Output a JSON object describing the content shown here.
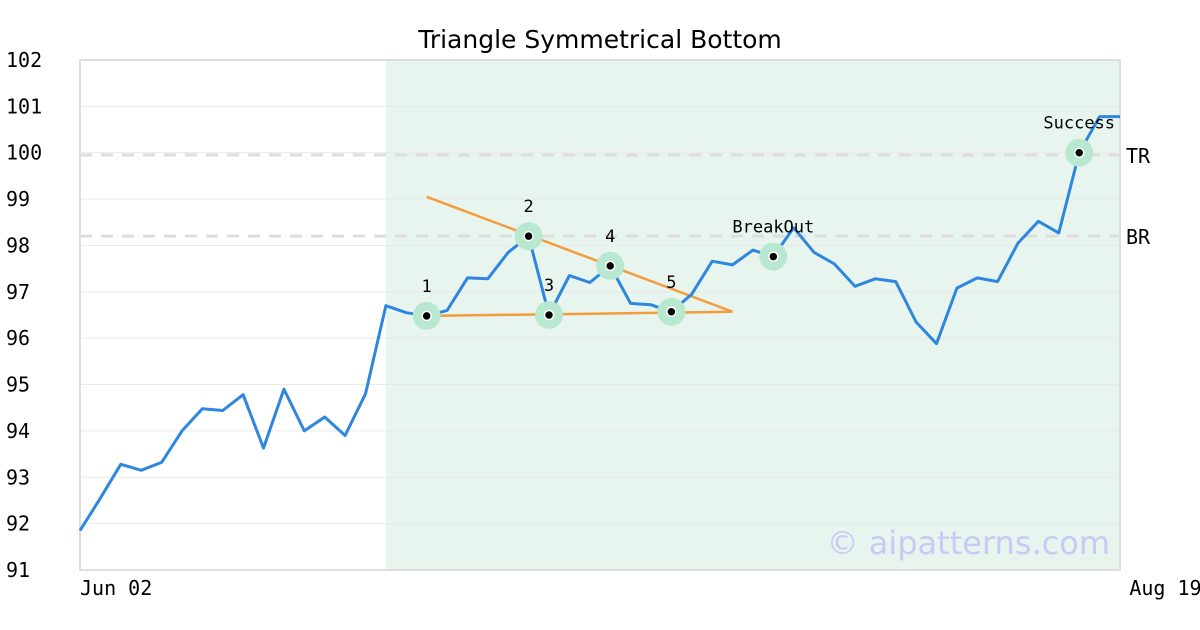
{
  "chart_data": {
    "type": "line",
    "title": "Triangle Symmetrical Bottom",
    "xlabel": "",
    "ylabel": "",
    "ylim": [
      91,
      102
    ],
    "yticks": [
      91,
      92,
      93,
      94,
      95,
      96,
      97,
      98,
      99,
      100,
      101,
      102
    ],
    "xtick_labels": [
      {
        "index": 0,
        "label": "Jun 02"
      },
      {
        "index": 55,
        "label": "Aug 19"
      }
    ],
    "grid": true,
    "legend": "none",
    "colors": {
      "price": "#2e86de",
      "trendline": "#f39c3c",
      "highlight": "#e8f5ef",
      "marker_halo": "#b9e8d0",
      "ref_line": "#dddddd",
      "frame": "#dddddd"
    },
    "highlight_range": [
      15,
      51
    ],
    "series": [
      {
        "values": [
          91.85,
          92.55,
          93.28,
          93.15,
          93.32,
          94.0,
          94.48,
          94.44,
          94.78,
          93.63,
          94.9,
          94.0,
          94.3,
          93.9,
          94.8,
          96.7,
          96.55,
          96.48,
          96.6,
          97.3,
          97.28,
          97.85,
          98.2,
          96.5,
          97.35,
          97.2,
          97.56,
          96.75,
          96.72,
          96.57,
          96.95,
          97.66,
          97.58,
          97.9,
          97.76,
          98.38,
          97.85,
          97.6,
          97.12,
          97.28,
          97.22,
          96.35,
          95.88,
          97.08,
          97.3,
          97.22,
          98.05,
          98.52,
          98.27,
          100.0,
          100.78,
          100.78
        ]
      }
    ],
    "trendlines": [
      {
        "from": [
          17,
          99.05
        ],
        "to": [
          32,
          96.57
        ]
      },
      {
        "from": [
          17,
          96.48
        ],
        "to": [
          32,
          96.57
        ]
      }
    ],
    "reference_lines": [
      {
        "label": "TR",
        "value": 99.95
      },
      {
        "label": "BR",
        "value": 98.2
      }
    ],
    "annotations": [
      {
        "label": "1",
        "x": 17,
        "y": 96.48
      },
      {
        "label": "2",
        "x": 22,
        "y": 98.2
      },
      {
        "label": "3",
        "x": 23,
        "y": 96.5
      },
      {
        "label": "4",
        "x": 26,
        "y": 97.56
      },
      {
        "label": "5",
        "x": 29,
        "y": 96.57
      },
      {
        "label": "BreakOut",
        "x": 34,
        "y": 97.76
      },
      {
        "label": "Success",
        "x": 49,
        "y": 100.0
      }
    ],
    "watermark": "© aipatterns.com"
  }
}
